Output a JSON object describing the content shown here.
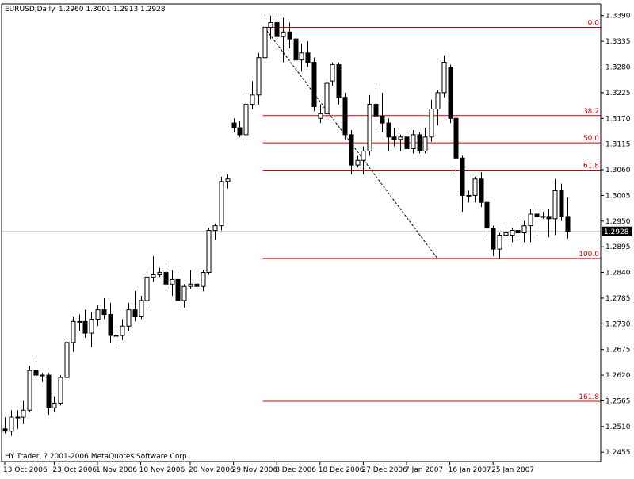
{
  "header": {
    "symbol": "EURUSD,Daily",
    "ohlc": "1.2960 1.3001 1.2913 1.2928"
  },
  "footer": {
    "copyright": "HY Trader, ? 2001-2006 MetaQuotes Software Corp."
  },
  "colors": {
    "background": "#ffffff",
    "axis": "#000000",
    "candle": "#000000",
    "fib": "#d00000",
    "current_price_line": "#c0c0c0",
    "trendline": "#000000"
  },
  "chart_data": {
    "type": "candlestick",
    "title": "EURUSD,Daily",
    "y_axis_side": "right",
    "ylim": [
      1.2435,
      1.3415
    ],
    "y_ticks": [
      "1.3390",
      "1.3335",
      "1.3280",
      "1.3225",
      "1.3170",
      "1.3115",
      "1.3060",
      "1.3005",
      "1.2950",
      "1.2895",
      "1.2840",
      "1.2785",
      "1.2730",
      "1.2675",
      "1.2620",
      "1.2565",
      "1.2510",
      "1.2455"
    ],
    "x_ticks": [
      {
        "label": "13 Oct 2006",
        "bar": 0
      },
      {
        "label": "23 Oct 2006",
        "bar": 8
      },
      {
        "label": "1 Nov 2006",
        "bar": 15
      },
      {
        "label": "10 Nov 2006",
        "bar": 22
      },
      {
        "label": "20 Nov 2006",
        "bar": 30
      },
      {
        "label": "29 Nov 2006",
        "bar": 37
      },
      {
        "label": "8 Dec 2006",
        "bar": 44
      },
      {
        "label": "18 Dec 2006",
        "bar": 51
      },
      {
        "label": "27 Dec 2006",
        "bar": 58
      },
      {
        "label": "7 Jan 2007",
        "bar": 65
      },
      {
        "label": "16 Jan 2007",
        "bar": 72
      },
      {
        "label": "25 Jan 2007",
        "bar": 79
      }
    ],
    "current_price": "1.2928",
    "candles": [
      {
        "o": 1.2505,
        "h": 1.253,
        "l": 1.2495,
        "c": 1.25
      },
      {
        "o": 1.25,
        "h": 1.2545,
        "l": 1.249,
        "c": 1.253
      },
      {
        "o": 1.253,
        "h": 1.2545,
        "l": 1.2505,
        "c": 1.253
      },
      {
        "o": 1.253,
        "h": 1.2565,
        "l": 1.2515,
        "c": 1.2545
      },
      {
        "o": 1.2545,
        "h": 1.264,
        "l": 1.254,
        "c": 1.263
      },
      {
        "o": 1.263,
        "h": 1.265,
        "l": 1.261,
        "c": 1.262
      },
      {
        "o": 1.262,
        "h": 1.2625,
        "l": 1.2605,
        "c": 1.262
      },
      {
        "o": 1.262,
        "h": 1.2625,
        "l": 1.2535,
        "c": 1.255
      },
      {
        "o": 1.255,
        "h": 1.2575,
        "l": 1.254,
        "c": 1.256
      },
      {
        "o": 1.256,
        "h": 1.262,
        "l": 1.2555,
        "c": 1.2615
      },
      {
        "o": 1.2615,
        "h": 1.27,
        "l": 1.261,
        "c": 1.269
      },
      {
        "o": 1.269,
        "h": 1.2745,
        "l": 1.267,
        "c": 1.2735
      },
      {
        "o": 1.2735,
        "h": 1.275,
        "l": 1.2715,
        "c": 1.2735
      },
      {
        "o": 1.2735,
        "h": 1.276,
        "l": 1.27,
        "c": 1.271
      },
      {
        "o": 1.271,
        "h": 1.2755,
        "l": 1.268,
        "c": 1.274
      },
      {
        "o": 1.274,
        "h": 1.277,
        "l": 1.2725,
        "c": 1.276
      },
      {
        "o": 1.276,
        "h": 1.2785,
        "l": 1.274,
        "c": 1.275
      },
      {
        "o": 1.275,
        "h": 1.2775,
        "l": 1.269,
        "c": 1.2705
      },
      {
        "o": 1.2705,
        "h": 1.272,
        "l": 1.2685,
        "c": 1.2705
      },
      {
        "o": 1.2705,
        "h": 1.274,
        "l": 1.2695,
        "c": 1.2725
      },
      {
        "o": 1.2725,
        "h": 1.2775,
        "l": 1.2715,
        "c": 1.276
      },
      {
        "o": 1.276,
        "h": 1.28,
        "l": 1.2735,
        "c": 1.2745
      },
      {
        "o": 1.2745,
        "h": 1.279,
        "l": 1.274,
        "c": 1.278
      },
      {
        "o": 1.278,
        "h": 1.284,
        "l": 1.277,
        "c": 1.283
      },
      {
        "o": 1.283,
        "h": 1.2875,
        "l": 1.282,
        "c": 1.2835
      },
      {
        "o": 1.2835,
        "h": 1.285,
        "l": 1.283,
        "c": 1.284
      },
      {
        "o": 1.284,
        "h": 1.286,
        "l": 1.28,
        "c": 1.2815
      },
      {
        "o": 1.2815,
        "h": 1.2845,
        "l": 1.279,
        "c": 1.2825
      },
      {
        "o": 1.2825,
        "h": 1.284,
        "l": 1.2765,
        "c": 1.278
      },
      {
        "o": 1.278,
        "h": 1.2815,
        "l": 1.2765,
        "c": 1.281
      },
      {
        "o": 1.281,
        "h": 1.2845,
        "l": 1.2805,
        "c": 1.2815
      },
      {
        "o": 1.2815,
        "h": 1.283,
        "l": 1.2805,
        "c": 1.281
      },
      {
        "o": 1.281,
        "h": 1.2845,
        "l": 1.28,
        "c": 1.284
      },
      {
        "o": 1.284,
        "h": 1.2935,
        "l": 1.2835,
        "c": 1.293
      },
      {
        "o": 1.293,
        "h": 1.2945,
        "l": 1.291,
        "c": 1.294
      },
      {
        "o": 1.294,
        "h": 1.3045,
        "l": 1.293,
        "c": 1.3035
      },
      {
        "o": 1.3035,
        "h": 1.305,
        "l": 1.302,
        "c": 1.304
      },
      {
        "o": 1.316,
        "h": 1.317,
        "l": 1.314,
        "c": 1.315
      },
      {
        "o": 1.315,
        "h": 1.3165,
        "l": 1.313,
        "c": 1.3135
      },
      {
        "o": 1.3135,
        "h": 1.3225,
        "l": 1.312,
        "c": 1.32
      },
      {
        "o": 1.32,
        "h": 1.325,
        "l": 1.319,
        "c": 1.322
      },
      {
        "o": 1.322,
        "h": 1.331,
        "l": 1.32,
        "c": 1.33
      },
      {
        "o": 1.33,
        "h": 1.3385,
        "l": 1.329,
        "c": 1.3365
      },
      {
        "o": 1.3365,
        "h": 1.339,
        "l": 1.334,
        "c": 1.3375
      },
      {
        "o": 1.3375,
        "h": 1.339,
        "l": 1.332,
        "c": 1.3345
      },
      {
        "o": 1.3345,
        "h": 1.3385,
        "l": 1.329,
        "c": 1.3355
      },
      {
        "o": 1.3355,
        "h": 1.3375,
        "l": 1.332,
        "c": 1.334
      },
      {
        "o": 1.334,
        "h": 1.3355,
        "l": 1.328,
        "c": 1.3295
      },
      {
        "o": 1.3295,
        "h": 1.333,
        "l": 1.327,
        "c": 1.331
      },
      {
        "o": 1.331,
        "h": 1.3335,
        "l": 1.328,
        "c": 1.329
      },
      {
        "o": 1.329,
        "h": 1.33,
        "l": 1.3185,
        "c": 1.3195
      },
      {
        "o": 1.317,
        "h": 1.32,
        "l": 1.316,
        "c": 1.318
      },
      {
        "o": 1.318,
        "h": 1.326,
        "l": 1.317,
        "c": 1.3245
      },
      {
        "o": 1.325,
        "h": 1.329,
        "l": 1.324,
        "c": 1.3285
      },
      {
        "o": 1.3285,
        "h": 1.329,
        "l": 1.32,
        "c": 1.3215
      },
      {
        "o": 1.3215,
        "h": 1.3225,
        "l": 1.3125,
        "c": 1.3135
      },
      {
        "o": 1.3135,
        "h": 1.3145,
        "l": 1.305,
        "c": 1.307
      },
      {
        "o": 1.307,
        "h": 1.309,
        "l": 1.3065,
        "c": 1.308
      },
      {
        "o": 1.308,
        "h": 1.311,
        "l": 1.305,
        "c": 1.31
      },
      {
        "o": 1.31,
        "h": 1.322,
        "l": 1.309,
        "c": 1.32
      },
      {
        "o": 1.32,
        "h": 1.324,
        "l": 1.315,
        "c": 1.3175
      },
      {
        "o": 1.3175,
        "h": 1.3225,
        "l": 1.314,
        "c": 1.316
      },
      {
        "o": 1.316,
        "h": 1.317,
        "l": 1.31,
        "c": 1.313
      },
      {
        "o": 1.313,
        "h": 1.315,
        "l": 1.311,
        "c": 1.3125
      },
      {
        "o": 1.3125,
        "h": 1.3135,
        "l": 1.31,
        "c": 1.313
      },
      {
        "o": 1.313,
        "h": 1.3145,
        "l": 1.31,
        "c": 1.3105
      },
      {
        "o": 1.3105,
        "h": 1.3145,
        "l": 1.3095,
        "c": 1.3135
      },
      {
        "o": 1.3135,
        "h": 1.314,
        "l": 1.3095,
        "c": 1.31
      },
      {
        "o": 1.31,
        "h": 1.315,
        "l": 1.3095,
        "c": 1.313
      },
      {
        "o": 1.313,
        "h": 1.321,
        "l": 1.312,
        "c": 1.319
      },
      {
        "o": 1.319,
        "h": 1.323,
        "l": 1.3155,
        "c": 1.3225
      },
      {
        "o": 1.3225,
        "h": 1.3305,
        "l": 1.3215,
        "c": 1.329
      },
      {
        "o": 1.328,
        "h": 1.3285,
        "l": 1.316,
        "c": 1.317
      },
      {
        "o": 1.317,
        "h": 1.3175,
        "l": 1.3055,
        "c": 1.3085
      },
      {
        "o": 1.3085,
        "h": 1.309,
        "l": 1.297,
        "c": 1.3005
      },
      {
        "o": 1.3005,
        "h": 1.3015,
        "l": 1.299,
        "c": 1.3005
      },
      {
        "o": 1.3005,
        "h": 1.3045,
        "l": 1.299,
        "c": 1.304
      },
      {
        "o": 1.304,
        "h": 1.3055,
        "l": 1.298,
        "c": 1.299
      },
      {
        "o": 1.299,
        "h": 1.3,
        "l": 1.291,
        "c": 1.2935
      },
      {
        "o": 1.2935,
        "h": 1.294,
        "l": 1.2875,
        "c": 1.289
      },
      {
        "o": 1.289,
        "h": 1.2925,
        "l": 1.287,
        "c": 1.292
      },
      {
        "o": 1.292,
        "h": 1.2935,
        "l": 1.291,
        "c": 1.2925
      },
      {
        "o": 1.292,
        "h": 1.2935,
        "l": 1.2905,
        "c": 1.293
      },
      {
        "o": 1.293,
        "h": 1.2955,
        "l": 1.2915,
        "c": 1.2925
      },
      {
        "o": 1.2925,
        "h": 1.295,
        "l": 1.2905,
        "c": 1.294
      },
      {
        "o": 1.294,
        "h": 1.2975,
        "l": 1.2905,
        "c": 1.2965
      },
      {
        "o": 1.2965,
        "h": 1.2985,
        "l": 1.292,
        "c": 1.296
      },
      {
        "o": 1.296,
        "h": 1.297,
        "l": 1.2955,
        "c": 1.296
      },
      {
        "o": 1.296,
        "h": 1.2975,
        "l": 1.2915,
        "c": 1.2955
      },
      {
        "o": 1.2955,
        "h": 1.304,
        "l": 1.292,
        "c": 1.3015
      },
      {
        "o": 1.3015,
        "h": 1.303,
        "l": 1.295,
        "c": 1.296
      },
      {
        "o": 1.296,
        "h": 1.3001,
        "l": 1.2913,
        "c": 1.2928
      }
    ],
    "fibonacci": {
      "high": 1.3365,
      "low": 1.287,
      "start_bar": 42,
      "levels": [
        {
          "label": "0.0",
          "ratio": 0.0
        },
        {
          "label": "38.2",
          "ratio": 0.382
        },
        {
          "label": "50.0",
          "ratio": 0.5
        },
        {
          "label": "61.8",
          "ratio": 0.618
        },
        {
          "label": "100.0",
          "ratio": 1.0
        },
        {
          "label": "161.8",
          "ratio": 1.618
        }
      ],
      "trendline": {
        "from_bar": 42,
        "from_price": 1.3365,
        "to_bar": 70,
        "to_price": 1.287
      }
    }
  }
}
